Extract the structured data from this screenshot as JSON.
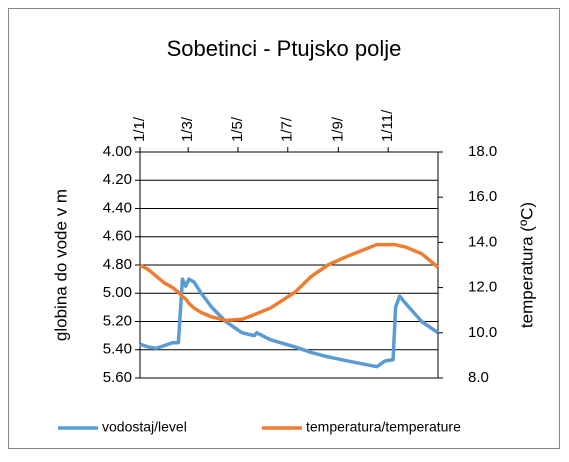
{
  "chart_data": {
    "type": "line",
    "title": "Sobetinci - Ptujsko polje",
    "ylabel": "globina do vode v m",
    "y2label": "temperatura (ºC)",
    "x": [
      0,
      10,
      20,
      30,
      40,
      47,
      52,
      56,
      60,
      66,
      75,
      88,
      105,
      125,
      140,
      143,
      160,
      190,
      210,
      230,
      255,
      290,
      300,
      310,
      313,
      318,
      325,
      345,
      365
    ],
    "xlim": [
      0,
      365
    ],
    "xticks": [
      {
        "value": 0,
        "label": "1/1/"
      },
      {
        "value": 59,
        "label": "1/3/"
      },
      {
        "value": 120,
        "label": "1/5/"
      },
      {
        "value": 181,
        "label": "1/7/"
      },
      {
        "value": 243,
        "label": "1/9/"
      },
      {
        "value": 304,
        "label": "1/11/"
      }
    ],
    "ylim": [
      4,
      5.6
    ],
    "y_inverted": true,
    "yticks": [
      {
        "value": 4,
        "label": "4.00"
      },
      {
        "value": 4.2,
        "label": "4.20"
      },
      {
        "value": 4.4,
        "label": "4.40"
      },
      {
        "value": 4.6,
        "label": "4.60"
      },
      {
        "value": 4.8,
        "label": "4.80"
      },
      {
        "value": 5,
        "label": "5.00"
      },
      {
        "value": 5.2,
        "label": "5.20"
      },
      {
        "value": 5.4,
        "label": "5.40"
      },
      {
        "value": 5.6,
        "label": "5.60"
      }
    ],
    "y2lim": [
      8,
      18
    ],
    "y2ticks": [
      {
        "value": 8,
        "label": "8.0"
      },
      {
        "value": 10,
        "label": "10.0"
      },
      {
        "value": 12,
        "label": "12.0"
      },
      {
        "value": 14,
        "label": "14.0"
      },
      {
        "value": 16,
        "label": "16.0"
      },
      {
        "value": 18,
        "label": "18.0"
      }
    ],
    "grid": true,
    "legend": "bottom",
    "series": [
      {
        "name": "vodostaj/level",
        "color": "#5b9bd5",
        "values": [
          5.36,
          5.38,
          5.39,
          5.37,
          5.35,
          5.35,
          4.9,
          4.95,
          4.9,
          4.92,
          5.0,
          5.1,
          5.2,
          5.28,
          5.3,
          5.28,
          5.33,
          5.38,
          5.42,
          5.45,
          5.48,
          5.52,
          5.48,
          5.47,
          5.1,
          5.02,
          5.07,
          5.2,
          5.28
        ]
      },
      {
        "name": "temperatura/temperature",
        "color": "#ed7d31",
        "axis": "y2",
        "values": [
          13.0,
          12.8,
          12.5,
          12.2,
          12.0,
          11.8,
          11.6,
          11.5,
          11.3,
          11.1,
          10.9,
          10.7,
          10.55,
          10.6,
          10.8,
          10.85,
          11.1,
          11.8,
          12.5,
          13.0,
          13.4,
          13.9,
          13.9,
          13.9,
          13.9,
          13.85,
          13.8,
          13.5,
          12.9
        ]
      }
    ]
  }
}
